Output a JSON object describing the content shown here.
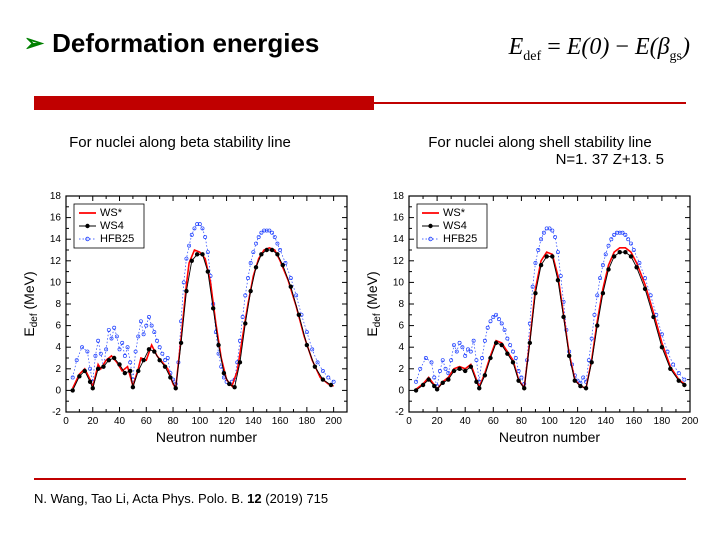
{
  "title": "Deformation energies",
  "bullet_glyph": "➢",
  "formula": {
    "lhs": "E",
    "lhs_sub": "def",
    "eq": "=",
    "t1": "E(0)",
    "minus": "−",
    "t2a": "E(",
    "beta": "β",
    "beta_sub": "gs",
    "t2b": ")"
  },
  "caption_left": "For nuclei along beta stability line",
  "caption_right": "For nuclei along shell stability line",
  "caption_right_sub": "N=1. 37 Z+13. 5",
  "citation_before": "N. Wang, Tao Li, Acta Phys. Polo. B. ",
  "citation_bold": "12",
  "citation_after": " (2019) 715",
  "colors": {
    "accent": "#c00000",
    "bullet": "#008000",
    "axis": "#000000",
    "grid": "#ffffff",
    "ws_star": "#ff0000",
    "ws4": "#000000",
    "hfb25": "#1a3cff",
    "chart_bg": "#ffffff"
  },
  "legend": {
    "items": [
      {
        "key": "WS*",
        "style": "line",
        "color": "#ff0000"
      },
      {
        "key": "WS4",
        "style": "marker",
        "color": "#000000"
      },
      {
        "key": "HFB25",
        "style": "dotted",
        "color": "#1a3cff"
      }
    ],
    "fontsize": 11
  },
  "xlabel": "Neutron number",
  "ylabel": "E_def (MeV)",
  "label_fontsize": 14,
  "tick_fontsize": 10,
  "chart_left": {
    "type": "line",
    "xlim": [
      0,
      210
    ],
    "ylim": [
      -2,
      18
    ],
    "xtick_step": 20,
    "ytick_step": 2,
    "line_width": 1.6,
    "marker_size": 2.2,
    "series": {
      "WS*": [
        [
          5,
          0.2
        ],
        [
          10,
          1.5
        ],
        [
          14,
          2.0
        ],
        [
          18,
          1.0
        ],
        [
          20,
          0.3
        ],
        [
          24,
          2.4
        ],
        [
          26,
          2.0
        ],
        [
          30,
          2.8
        ],
        [
          34,
          3.2
        ],
        [
          38,
          2.6
        ],
        [
          42,
          1.8
        ],
        [
          46,
          2.2
        ],
        [
          50,
          0.4
        ],
        [
          54,
          2.0
        ],
        [
          56,
          3.0
        ],
        [
          60,
          2.8
        ],
        [
          64,
          4.2
        ],
        [
          68,
          3.2
        ],
        [
          72,
          2.6
        ],
        [
          76,
          2.0
        ],
        [
          80,
          0.6
        ],
        [
          82,
          0.2
        ],
        [
          86,
          4.8
        ],
        [
          90,
          9.8
        ],
        [
          92,
          11.8
        ],
        [
          96,
          13.0
        ],
        [
          100,
          12.8
        ],
        [
          104,
          12.2
        ],
        [
          108,
          10.0
        ],
        [
          112,
          6.2
        ],
        [
          116,
          3.0
        ],
        [
          120,
          1.0
        ],
        [
          124,
          0.4
        ],
        [
          128,
          1.8
        ],
        [
          132,
          5.0
        ],
        [
          136,
          8.0
        ],
        [
          140,
          10.6
        ],
        [
          144,
          12.2
        ],
        [
          148,
          13.0
        ],
        [
          152,
          13.2
        ],
        [
          156,
          13.0
        ],
        [
          160,
          12.0
        ],
        [
          166,
          10.2
        ],
        [
          172,
          7.8
        ],
        [
          178,
          5.0
        ],
        [
          184,
          2.8
        ],
        [
          190,
          1.2
        ],
        [
          196,
          0.6
        ],
        [
          200,
          0.4
        ]
      ],
      "WS4": [
        [
          5,
          0.0
        ],
        [
          10,
          1.3
        ],
        [
          14,
          1.8
        ],
        [
          18,
          0.8
        ],
        [
          20,
          0.2
        ],
        [
          24,
          2.0
        ],
        [
          28,
          2.2
        ],
        [
          32,
          2.8
        ],
        [
          36,
          3.0
        ],
        [
          40,
          2.4
        ],
        [
          44,
          1.6
        ],
        [
          48,
          1.8
        ],
        [
          50,
          0.3
        ],
        [
          54,
          1.8
        ],
        [
          58,
          2.8
        ],
        [
          62,
          3.8
        ],
        [
          66,
          3.6
        ],
        [
          70,
          2.8
        ],
        [
          74,
          2.2
        ],
        [
          78,
          1.2
        ],
        [
          82,
          0.2
        ],
        [
          86,
          4.4
        ],
        [
          90,
          9.2
        ],
        [
          94,
          12.0
        ],
        [
          98,
          12.6
        ],
        [
          102,
          12.6
        ],
        [
          106,
          11.0
        ],
        [
          110,
          7.6
        ],
        [
          114,
          4.2
        ],
        [
          118,
          1.6
        ],
        [
          122,
          0.6
        ],
        [
          126,
          0.3
        ],
        [
          130,
          2.6
        ],
        [
          134,
          6.2
        ],
        [
          138,
          9.2
        ],
        [
          142,
          11.4
        ],
        [
          146,
          12.6
        ],
        [
          150,
          13.0
        ],
        [
          154,
          13.0
        ],
        [
          158,
          12.6
        ],
        [
          162,
          11.6
        ],
        [
          168,
          9.6
        ],
        [
          174,
          7.0
        ],
        [
          180,
          4.2
        ],
        [
          186,
          2.2
        ],
        [
          192,
          1.0
        ],
        [
          198,
          0.5
        ]
      ],
      "HFB25": [
        [
          5,
          1.2
        ],
        [
          8,
          2.8
        ],
        [
          12,
          4.0
        ],
        [
          16,
          3.6
        ],
        [
          18,
          2.0
        ],
        [
          20,
          0.8
        ],
        [
          22,
          3.2
        ],
        [
          24,
          4.6
        ],
        [
          26,
          3.4
        ],
        [
          28,
          2.2
        ],
        [
          30,
          3.8
        ],
        [
          32,
          5.6
        ],
        [
          34,
          4.8
        ],
        [
          36,
          5.8
        ],
        [
          38,
          5.0
        ],
        [
          40,
          3.8
        ],
        [
          42,
          4.4
        ],
        [
          44,
          3.2
        ],
        [
          46,
          4.0
        ],
        [
          48,
          2.6
        ],
        [
          50,
          1.0
        ],
        [
          52,
          3.6
        ],
        [
          54,
          5.0
        ],
        [
          56,
          6.4
        ],
        [
          58,
          5.2
        ],
        [
          60,
          6.0
        ],
        [
          62,
          6.8
        ],
        [
          64,
          6.0
        ],
        [
          66,
          5.4
        ],
        [
          68,
          4.6
        ],
        [
          70,
          4.0
        ],
        [
          72,
          3.4
        ],
        [
          74,
          2.8
        ],
        [
          76,
          3.0
        ],
        [
          78,
          1.6
        ],
        [
          80,
          1.0
        ],
        [
          82,
          0.6
        ],
        [
          84,
          2.6
        ],
        [
          86,
          6.4
        ],
        [
          88,
          10.0
        ],
        [
          90,
          12.2
        ],
        [
          92,
          13.4
        ],
        [
          94,
          14.4
        ],
        [
          96,
          15.0
        ],
        [
          98,
          15.4
        ],
        [
          100,
          15.4
        ],
        [
          102,
          15.0
        ],
        [
          104,
          14.2
        ],
        [
          106,
          12.8
        ],
        [
          108,
          10.6
        ],
        [
          110,
          8.0
        ],
        [
          112,
          5.4
        ],
        [
          114,
          3.4
        ],
        [
          116,
          2.2
        ],
        [
          118,
          1.2
        ],
        [
          120,
          0.8
        ],
        [
          122,
          0.6
        ],
        [
          124,
          0.8
        ],
        [
          126,
          1.0
        ],
        [
          128,
          2.6
        ],
        [
          130,
          4.6
        ],
        [
          132,
          6.8
        ],
        [
          134,
          8.8
        ],
        [
          136,
          10.4
        ],
        [
          138,
          11.8
        ],
        [
          140,
          12.8
        ],
        [
          142,
          13.6
        ],
        [
          144,
          14.2
        ],
        [
          146,
          14.6
        ],
        [
          148,
          14.8
        ],
        [
          150,
          14.8
        ],
        [
          152,
          14.8
        ],
        [
          154,
          14.6
        ],
        [
          156,
          14.2
        ],
        [
          158,
          13.6
        ],
        [
          160,
          13.0
        ],
        [
          164,
          11.8
        ],
        [
          168,
          10.4
        ],
        [
          172,
          8.8
        ],
        [
          176,
          7.0
        ],
        [
          180,
          5.4
        ],
        [
          184,
          3.8
        ],
        [
          188,
          2.6
        ],
        [
          192,
          1.8
        ],
        [
          196,
          1.2
        ],
        [
          200,
          0.8
        ]
      ]
    }
  },
  "chart_right": {
    "type": "line",
    "xlim": [
      0,
      200
    ],
    "ylim": [
      -2,
      18
    ],
    "xtick_step": 20,
    "ytick_step": 2,
    "line_width": 1.6,
    "marker_size": 2.2,
    "series": {
      "WS*": [
        [
          5,
          0.1
        ],
        [
          10,
          0.6
        ],
        [
          14,
          1.2
        ],
        [
          18,
          0.5
        ],
        [
          20,
          0.1
        ],
        [
          24,
          0.8
        ],
        [
          28,
          1.2
        ],
        [
          32,
          2.0
        ],
        [
          36,
          2.2
        ],
        [
          40,
          2.0
        ],
        [
          44,
          2.4
        ],
        [
          48,
          1.0
        ],
        [
          50,
          0.3
        ],
        [
          54,
          1.6
        ],
        [
          58,
          3.2
        ],
        [
          62,
          4.6
        ],
        [
          66,
          4.4
        ],
        [
          70,
          3.6
        ],
        [
          74,
          2.8
        ],
        [
          78,
          1.0
        ],
        [
          82,
          0.2
        ],
        [
          86,
          4.6
        ],
        [
          90,
          9.4
        ],
        [
          94,
          12.0
        ],
        [
          98,
          12.8
        ],
        [
          102,
          12.6
        ],
        [
          106,
          10.6
        ],
        [
          110,
          7.0
        ],
        [
          114,
          3.4
        ],
        [
          118,
          1.0
        ],
        [
          122,
          0.4
        ],
        [
          126,
          0.2
        ],
        [
          130,
          2.8
        ],
        [
          134,
          6.4
        ],
        [
          138,
          9.4
        ],
        [
          142,
          11.6
        ],
        [
          146,
          12.8
        ],
        [
          150,
          13.2
        ],
        [
          154,
          13.2
        ],
        [
          158,
          12.8
        ],
        [
          162,
          11.8
        ],
        [
          168,
          9.8
        ],
        [
          174,
          7.2
        ],
        [
          180,
          4.4
        ],
        [
          186,
          2.2
        ],
        [
          192,
          1.0
        ],
        [
          196,
          0.6
        ]
      ],
      "WS4": [
        [
          5,
          0.0
        ],
        [
          10,
          0.5
        ],
        [
          14,
          1.0
        ],
        [
          18,
          0.4
        ],
        [
          20,
          0.1
        ],
        [
          24,
          0.7
        ],
        [
          28,
          1.0
        ],
        [
          32,
          1.8
        ],
        [
          36,
          2.0
        ],
        [
          40,
          1.8
        ],
        [
          44,
          2.2
        ],
        [
          48,
          0.8
        ],
        [
          50,
          0.2
        ],
        [
          54,
          1.4
        ],
        [
          58,
          3.0
        ],
        [
          62,
          4.4
        ],
        [
          66,
          4.2
        ],
        [
          70,
          3.4
        ],
        [
          74,
          2.6
        ],
        [
          78,
          0.9
        ],
        [
          82,
          0.2
        ],
        [
          86,
          4.4
        ],
        [
          90,
          9.0
        ],
        [
          94,
          11.6
        ],
        [
          98,
          12.4
        ],
        [
          102,
          12.4
        ],
        [
          106,
          10.2
        ],
        [
          110,
          6.8
        ],
        [
          114,
          3.2
        ],
        [
          118,
          0.9
        ],
        [
          122,
          0.4
        ],
        [
          126,
          0.2
        ],
        [
          130,
          2.6
        ],
        [
          134,
          6.0
        ],
        [
          138,
          9.0
        ],
        [
          142,
          11.2
        ],
        [
          146,
          12.4
        ],
        [
          150,
          12.8
        ],
        [
          154,
          12.8
        ],
        [
          158,
          12.4
        ],
        [
          162,
          11.4
        ],
        [
          168,
          9.4
        ],
        [
          174,
          6.8
        ],
        [
          180,
          4.0
        ],
        [
          186,
          2.0
        ],
        [
          192,
          0.9
        ],
        [
          196,
          0.5
        ]
      ],
      "HFB25": [
        [
          5,
          0.8
        ],
        [
          8,
          2.0
        ],
        [
          12,
          3.0
        ],
        [
          16,
          2.6
        ],
        [
          18,
          1.2
        ],
        [
          20,
          0.4
        ],
        [
          22,
          1.8
        ],
        [
          24,
          2.8
        ],
        [
          26,
          2.0
        ],
        [
          28,
          1.6
        ],
        [
          30,
          2.8
        ],
        [
          32,
          4.2
        ],
        [
          34,
          3.6
        ],
        [
          36,
          4.4
        ],
        [
          38,
          4.0
        ],
        [
          40,
          3.2
        ],
        [
          42,
          3.8
        ],
        [
          44,
          3.6
        ],
        [
          46,
          4.6
        ],
        [
          48,
          2.8
        ],
        [
          50,
          0.8
        ],
        [
          52,
          3.0
        ],
        [
          54,
          4.6
        ],
        [
          56,
          5.8
        ],
        [
          58,
          6.4
        ],
        [
          60,
          6.8
        ],
        [
          62,
          7.0
        ],
        [
          64,
          6.6
        ],
        [
          66,
          6.2
        ],
        [
          68,
          5.6
        ],
        [
          70,
          4.8
        ],
        [
          72,
          4.2
        ],
        [
          74,
          3.6
        ],
        [
          76,
          3.0
        ],
        [
          78,
          1.8
        ],
        [
          80,
          1.2
        ],
        [
          82,
          0.6
        ],
        [
          84,
          2.8
        ],
        [
          86,
          6.2
        ],
        [
          88,
          9.6
        ],
        [
          90,
          11.8
        ],
        [
          92,
          13.0
        ],
        [
          94,
          14.0
        ],
        [
          96,
          14.6
        ],
        [
          98,
          15.0
        ],
        [
          100,
          15.0
        ],
        [
          102,
          14.8
        ],
        [
          104,
          14.2
        ],
        [
          106,
          12.8
        ],
        [
          108,
          10.6
        ],
        [
          110,
          8.2
        ],
        [
          112,
          5.6
        ],
        [
          114,
          3.6
        ],
        [
          116,
          2.4
        ],
        [
          118,
          1.4
        ],
        [
          120,
          0.9
        ],
        [
          122,
          0.7
        ],
        [
          124,
          1.2
        ],
        [
          126,
          0.8
        ],
        [
          128,
          2.8
        ],
        [
          130,
          4.8
        ],
        [
          132,
          7.0
        ],
        [
          134,
          8.8
        ],
        [
          136,
          10.4
        ],
        [
          138,
          11.6
        ],
        [
          140,
          12.6
        ],
        [
          142,
          13.4
        ],
        [
          144,
          14.0
        ],
        [
          146,
          14.4
        ],
        [
          148,
          14.6
        ],
        [
          150,
          14.6
        ],
        [
          152,
          14.6
        ],
        [
          154,
          14.4
        ],
        [
          156,
          14.0
        ],
        [
          158,
          13.6
        ],
        [
          160,
          13.0
        ],
        [
          164,
          11.8
        ],
        [
          168,
          10.4
        ],
        [
          172,
          8.8
        ],
        [
          176,
          7.0
        ],
        [
          180,
          5.2
        ],
        [
          184,
          3.6
        ],
        [
          188,
          2.4
        ],
        [
          192,
          1.6
        ],
        [
          196,
          1.0
        ]
      ]
    }
  }
}
